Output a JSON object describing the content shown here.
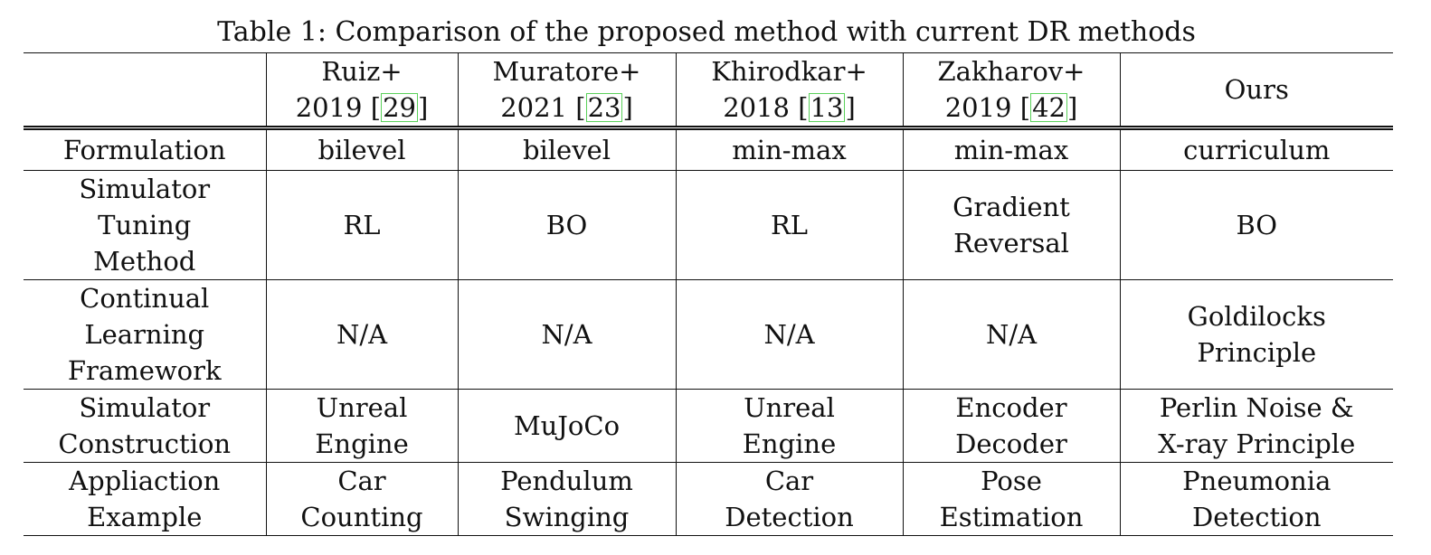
{
  "caption": "Table 1: Comparison of the proposed method with current DR methods",
  "header": [
    {
      "lines": [
        "Ruiz+",
        "2019"
      ],
      "cite": "29"
    },
    {
      "lines": [
        "Muratore+",
        "2021"
      ],
      "cite": "23"
    },
    {
      "lines": [
        "Khirodkar+",
        "2018"
      ],
      "cite": "13"
    },
    {
      "lines": [
        "Zakharov+",
        "2019"
      ],
      "cite": "42"
    },
    {
      "lines": [
        "Ours"
      ],
      "cite": ""
    }
  ],
  "rows": [
    {
      "label": [
        "Formulation"
      ],
      "cells": [
        [
          "bilevel"
        ],
        [
          "bilevel"
        ],
        [
          "min-max"
        ],
        [
          "min-max"
        ],
        [
          "curriculum"
        ]
      ]
    },
    {
      "label": [
        "Simulator",
        "Tuning",
        "Method"
      ],
      "cells": [
        [
          "RL"
        ],
        [
          "BO"
        ],
        [
          "RL"
        ],
        [
          "Gradient",
          "Reversal"
        ],
        [
          "BO"
        ]
      ]
    },
    {
      "label": [
        "Continual",
        "Learning",
        "Framework"
      ],
      "cells": [
        [
          "N/A"
        ],
        [
          "N/A"
        ],
        [
          "N/A"
        ],
        [
          "N/A"
        ],
        [
          "Goldilocks",
          "Principle"
        ]
      ]
    },
    {
      "label": [
        "Simulator",
        "Construction"
      ],
      "cells": [
        [
          "Unreal",
          "Engine"
        ],
        [
          "MuJoCo"
        ],
        [
          "Unreal",
          "Engine"
        ],
        [
          "Encoder",
          "Decoder"
        ],
        [
          "Perlin Noise &",
          "X-ray Principle"
        ]
      ]
    },
    {
      "label": [
        "Appliaction",
        "Example"
      ],
      "cells": [
        [
          "Car",
          "Counting"
        ],
        [
          "Pendulum",
          "Swinging"
        ],
        [
          "Car",
          "Detection"
        ],
        [
          "Pose",
          "Estimation"
        ],
        [
          "Pneumonia",
          "Detection"
        ]
      ]
    }
  ],
  "colors": {
    "text": "#111111",
    "citation_box": "#5bd15b"
  }
}
